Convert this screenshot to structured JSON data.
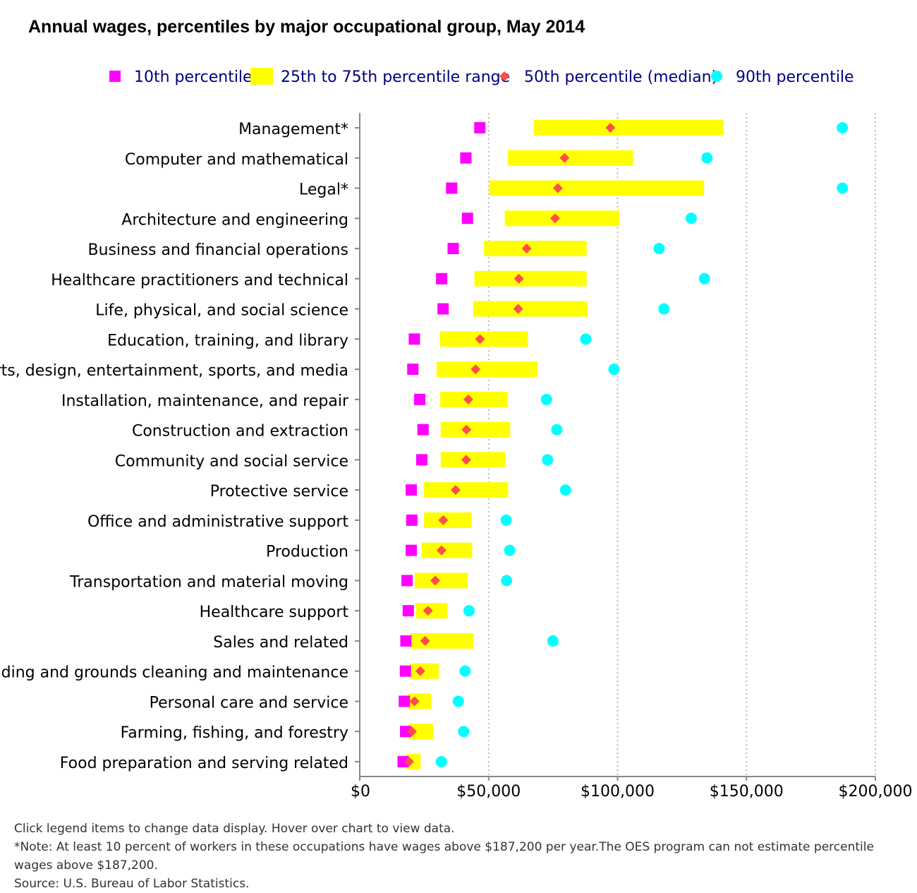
{
  "chart_data": {
    "type": "range",
    "title": "Annual wages, percentiles by major occupational group, May 2014",
    "legend": {
      "placement": "top",
      "items": [
        {
          "name": "10th percentile",
          "marker": "square",
          "color": "#FF00FF"
        },
        {
          "name": "25th to 75th percentile range",
          "marker": "bar",
          "color": "#FFFF00"
        },
        {
          "name": "50th percentile (median)",
          "marker": "diamond",
          "color": "#FF4D4D"
        },
        {
          "name": "90th percentile",
          "marker": "circle",
          "color": "#00FFFF"
        }
      ]
    },
    "x_axis": {
      "min": 0,
      "max": 200000,
      "ticks": [
        {
          "value": 0,
          "label": "$0"
        },
        {
          "value": 50000,
          "label": "$50,000"
        },
        {
          "value": 100000,
          "label": "$100,000"
        },
        {
          "value": 150000,
          "label": "$150,000"
        },
        {
          "value": 200000,
          "label": "$200,000"
        }
      ],
      "grid": true
    },
    "categories": [
      "Management*",
      "Computer and mathematical",
      "Legal*",
      "Architecture and engineering",
      "Business and financial operations",
      "Healthcare practitioners and technical",
      "Life, physical, and social science",
      "Education, training, and library",
      "Arts, design, entertainment, sports, and media",
      "Installation, maintenance, and repair",
      "Construction and extraction",
      "Community and social service",
      "Protective service",
      "Office and administrative support",
      "Production",
      "Transportation and material moving",
      "Healthcare support",
      "Sales and related",
      "Building and grounds cleaning and maintenance",
      "Personal care and service",
      "Farming, fishing, and forestry",
      "Food preparation and serving related"
    ],
    "series": [
      {
        "name": "10th percentile",
        "values": [
          46580,
          41160,
          35650,
          41790,
          36250,
          31760,
          32330,
          21180,
          20590,
          23270,
          24550,
          24070,
          19970,
          20200,
          19970,
          18360,
          18820,
          17900,
          17720,
          17300,
          17790,
          16810
        ]
      },
      {
        "name": "25th percentile",
        "values": [
          67480,
          57400,
          50160,
          56260,
          48240,
          44480,
          43990,
          31110,
          29810,
          31190,
          31400,
          31400,
          24850,
          24950,
          24000,
          21300,
          21810,
          19570,
          19220,
          18580,
          18880,
          18110
        ]
      },
      {
        "name": "50th percentile (median)",
        "values": [
          97230,
          79420,
          76860,
          75780,
          64720,
          61710,
          61450,
          46660,
          44940,
          42110,
          41380,
          41290,
          37180,
          32370,
          31700,
          29270,
          26440,
          25360,
          23470,
          21260,
          20260,
          19130
        ]
      },
      {
        "name": "75th percentile",
        "values": [
          141120,
          106000,
          133560,
          100680,
          87990,
          87990,
          88320,
          65250,
          68910,
          57390,
          58350,
          56500,
          57560,
          43430,
          43640,
          41870,
          34050,
          44190,
          30650,
          27670,
          28490,
          23590
        ]
      },
      {
        "name": "90th percentile",
        "values": [
          187200,
          134700,
          187200,
          128580,
          116090,
          133700,
          118000,
          87670,
          98610,
          72450,
          76450,
          72850,
          79820,
          56810,
          58160,
          56960,
          42390,
          74920,
          40840,
          38250,
          40310,
          31690
        ]
      }
    ]
  },
  "footnotes": {
    "instructions": "Click legend items to change data display. Hover over chart to view data.",
    "note": "*Note: At least 10 percent of workers in these occupations have wages above $187,200 per year.The OES program can not estimate percentile wages above $187,200.",
    "source": "Source: U.S. Bureau of Labor Statistics."
  }
}
